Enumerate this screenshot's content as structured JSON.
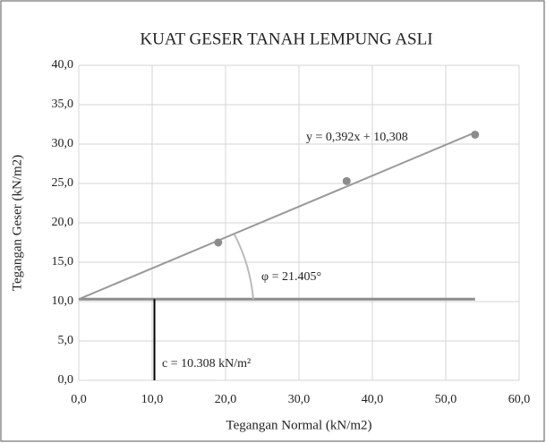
{
  "chart_data": {
    "type": "scatter",
    "title": "KUAT GESER TANAH LEMPUNG ASLI",
    "x_label": "Tegangan Normal (kN/m2)",
    "y_label": "Tegangan Geser (kN/m2)",
    "x": [
      19,
      36.5,
      54
    ],
    "values": [
      17.5,
      25.3,
      31.2
    ],
    "color": "#8c8c8c",
    "trendline": {
      "label": "y = 0,392x + 10,308",
      "slope": 0.392,
      "intercept": 10.308,
      "color": "#999999"
    },
    "annotations": [
      "φ = 21.405°",
      "c = 10.308 kN/m²"
    ],
    "xlim": [
      0,
      60
    ],
    "xticks": [
      {
        "value": 0,
        "label": "0,0"
      },
      {
        "value": 10,
        "label": "10,0"
      },
      {
        "value": 20,
        "label": "20,0"
      },
      {
        "value": 30,
        "label": "30,0"
      },
      {
        "value": 40,
        "label": "40,0"
      },
      {
        "value": 50,
        "label": "50,0"
      },
      {
        "value": 60,
        "label": "60,0"
      }
    ],
    "ylim": [
      0,
      40
    ],
    "yticks": [
      {
        "value": 0,
        "label": "0,0"
      },
      {
        "value": 5,
        "label": "5,0"
      },
      {
        "value": 10,
        "label": "10,0"
      },
      {
        "value": 15,
        "label": "15,0"
      },
      {
        "value": 20,
        "label": "20,0"
      },
      {
        "value": 25,
        "label": "25,0"
      },
      {
        "value": 30,
        "label": "30,0"
      },
      {
        "value": 35,
        "label": "35,0"
      },
      {
        "value": 40,
        "label": "40,0"
      }
    ],
    "grid": true
  }
}
